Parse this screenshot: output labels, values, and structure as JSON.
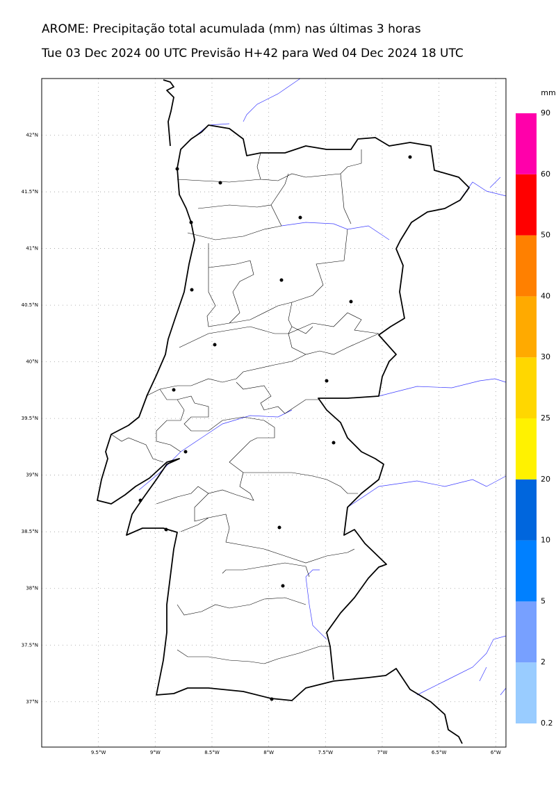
{
  "header": {
    "title": "AROME: Precipitação total acumulada (mm) nas últimas 3 horas",
    "subtitle": "Tue 03 Dec 2024 00 UTC Previsão H+42 para Wed 04 Dec 2024 18 UTC"
  },
  "map": {
    "lon_range": [
      -10,
      -5.91
    ],
    "lat_range": [
      36.6,
      42.5
    ],
    "lon_ticks": [
      {
        "value": -9.5,
        "label": "9.5°W"
      },
      {
        "value": -9,
        "label": "9°W"
      },
      {
        "value": -8.5,
        "label": "8.5°W"
      },
      {
        "value": -8,
        "label": "8°W"
      },
      {
        "value": -7.5,
        "label": "7.5°W"
      },
      {
        "value": -7,
        "label": "7°W"
      },
      {
        "value": -6.5,
        "label": "6.5°W"
      },
      {
        "value": -6,
        "label": "6°W"
      }
    ],
    "lat_ticks": [
      {
        "value": 42,
        "label": "42°N"
      },
      {
        "value": 41.5,
        "label": "41.5°N"
      },
      {
        "value": 41,
        "label": "41°N"
      },
      {
        "value": 40.5,
        "label": "40.5°N"
      },
      {
        "value": 40,
        "label": "40°N"
      },
      {
        "value": 39.5,
        "label": "39.5°N"
      },
      {
        "value": 39,
        "label": "39°N"
      },
      {
        "value": 38.5,
        "label": "38.5°N"
      },
      {
        "value": 38,
        "label": "38°N"
      },
      {
        "value": 37.5,
        "label": "37.5°N"
      },
      {
        "value": 37,
        "label": "37°N"
      }
    ]
  },
  "colorbar": {
    "unit": "mm",
    "levels": [
      0.2,
      2,
      5,
      10,
      20,
      25,
      30,
      40,
      50,
      60,
      90
    ],
    "colors": [
      "#99ccff",
      "#77a0ff",
      "#0080ff",
      "#0066dd",
      "#fff200",
      "#ffd700",
      "#ffaa00",
      "#ff8000",
      "#ff0000",
      "#ff00aa"
    ]
  }
}
